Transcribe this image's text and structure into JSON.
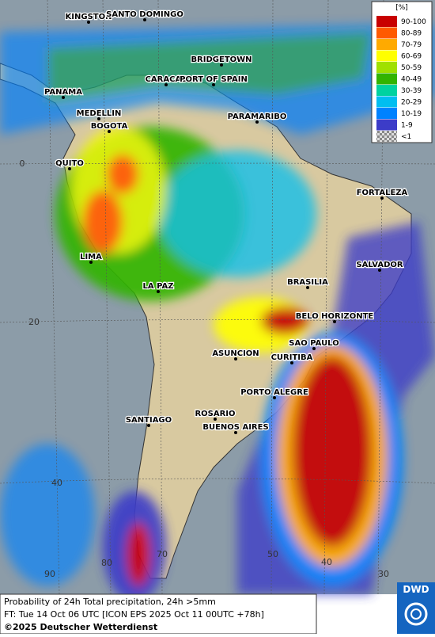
{
  "map": {
    "cities": [
      "KINGSTON",
      "SANTO DOMINGO",
      "BRIDGETOWN",
      "PANAMA",
      "CARACAS",
      "PORT OF SPAIN",
      "MEDELLIN",
      "BOGOTA",
      "PARAMARIBO",
      "QUITO",
      "FORTALEZA",
      "LIMA",
      "SALVADOR",
      "LA PAZ",
      "BRASILIA",
      "BELO HORIZONTE",
      "ASUNCION",
      "SAO PAULO",
      "CURITIBA",
      "PORTO ALEGRE",
      "SANTIAGO",
      "ROSARIO",
      "BUENOS AIRES"
    ],
    "grid_labels": [
      "0",
      "20",
      "40",
      "90",
      "80",
      "70",
      "50",
      "40",
      "30"
    ]
  },
  "legend": {
    "title": "[%]",
    "entries": [
      {
        "label": "90-100",
        "color": "#c80000"
      },
      {
        "label": "80-89",
        "color": "#ff5a00"
      },
      {
        "label": "70-79",
        "color": "#ffaa00"
      },
      {
        "label": "60-69",
        "color": "#ffff00"
      },
      {
        "label": "50-59",
        "color": "#a0e000"
      },
      {
        "label": "40-49",
        "color": "#32b400"
      },
      {
        "label": "30-39",
        "color": "#00d2a0"
      },
      {
        "label": "20-29",
        "color": "#00bef0"
      },
      {
        "label": "10-19",
        "color": "#0082ff"
      },
      {
        "label": "1-9",
        "color": "#3c3cc8"
      },
      {
        "label": "<1",
        "color": "#b4b4b4"
      }
    ]
  },
  "footer": {
    "lines": [
      "Probability of 24h Total precipitation, 24h >5mm",
      "FT: Tue 14 Oct 06 UTC [ICON EPS 2025 Oct 11 00UTC +78h]",
      "©2025 Deutscher Wetterdienst"
    ]
  },
  "logo": {
    "text": "DWD"
  }
}
